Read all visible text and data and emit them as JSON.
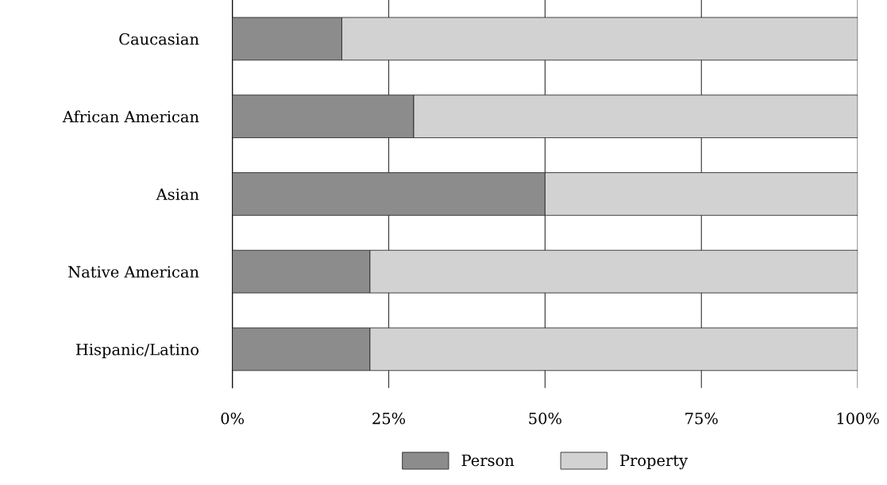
{
  "chart_data": {
    "type": "bar",
    "orientation": "horizontal",
    "stacked": true,
    "categories": [
      "Caucasian",
      "African American",
      "Asian",
      "Native American",
      "Hispanic/Latino"
    ],
    "series": [
      {
        "name": "Person",
        "color": "#8c8c8c",
        "values": [
          17.5,
          29,
          50,
          22,
          22
        ]
      },
      {
        "name": "Property",
        "color": "#d2d2d2",
        "values": [
          82.5,
          71,
          50,
          78,
          78
        ]
      }
    ],
    "xlim": [
      0,
      100
    ],
    "xticks": [
      {
        "value": 0,
        "label": "0%"
      },
      {
        "value": 25,
        "label": "25%"
      },
      {
        "value": 50,
        "label": "50%"
      },
      {
        "value": 75,
        "label": "75%"
      },
      {
        "value": 100,
        "label": "100%"
      }
    ],
    "grid": "x",
    "legend": "bottom"
  }
}
